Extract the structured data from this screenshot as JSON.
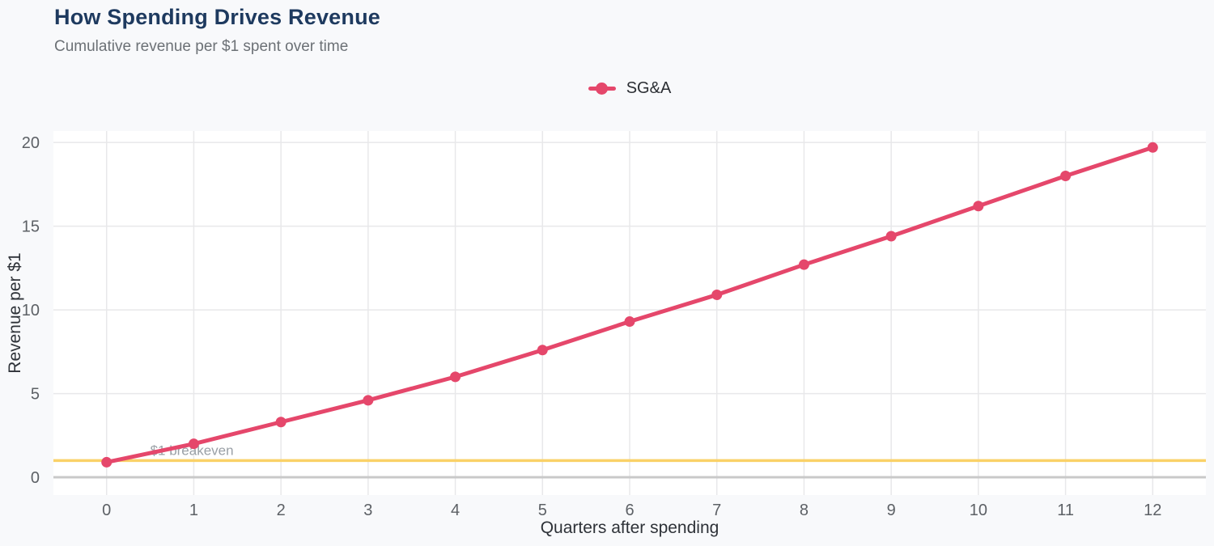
{
  "header": {
    "title": "How Spending Drives Revenue",
    "subtitle": "Cumulative revenue per $1 spent over time"
  },
  "legend": {
    "position": "top-center",
    "items": [
      {
        "label": "SG&A",
        "color": "#e5476b"
      }
    ]
  },
  "chart_data": {
    "type": "line",
    "title": "How Spending Drives Revenue",
    "subtitle": "Cumulative revenue per $1 spent over time",
    "xlabel": "Quarters after spending",
    "ylabel": "Revenue per $1",
    "x": [
      0,
      1,
      2,
      3,
      4,
      5,
      6,
      7,
      8,
      9,
      10,
      11,
      12
    ],
    "series": [
      {
        "name": "SG&A",
        "color": "#e5476b",
        "values": [
          0.9,
          2.0,
          3.3,
          4.6,
          6.0,
          7.6,
          9.3,
          10.9,
          12.7,
          14.4,
          16.2,
          18.0,
          19.7
        ]
      }
    ],
    "xticks": [
      0,
      1,
      2,
      3,
      4,
      5,
      6,
      7,
      8,
      9,
      10,
      11,
      12
    ],
    "yticks": [
      0,
      5,
      10,
      15,
      20
    ],
    "xlim": [
      -0.61,
      12.61
    ],
    "ylim": [
      -1.06,
      20.68
    ],
    "grid": true,
    "legend_position": "top-center",
    "reference_line": {
      "y": 1,
      "color": "#fad168"
    },
    "annotation": {
      "text": "$1 breakeven",
      "x": 0.5,
      "y": 1
    }
  },
  "colors": {
    "page_bg": "#f8f9fb",
    "plot_bg": "#ffffff",
    "grid": "#e8e8ea",
    "zero_line": "#c9c9c9",
    "tick_label": "#5d6166",
    "axis_title": "#2e3238",
    "annotation": "#9aa0a6",
    "title": "#1e3a5f",
    "subtitle": "#6c7176",
    "series": "#e5476b",
    "reference": "#fad168"
  }
}
